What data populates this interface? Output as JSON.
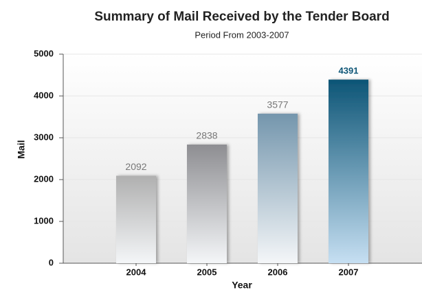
{
  "chart_data": {
    "type": "bar",
    "title": "Summary of Mail Received by the Tender Board",
    "subtitle": "Period From 2003-2007",
    "x_label": "Year",
    "y_label": "Mail",
    "categories": [
      "2004",
      "2005",
      "2006",
      "2007"
    ],
    "values": [
      2092,
      2838,
      3577,
      4391
    ],
    "colors": [
      "#b0b0b0",
      "#8e8e92",
      "#7496ad",
      "#0d5576"
    ],
    "ylim": [
      0,
      5000
    ],
    "yticks": [
      0,
      1000,
      2000,
      3000,
      4000,
      5000
    ],
    "grid": true
  }
}
